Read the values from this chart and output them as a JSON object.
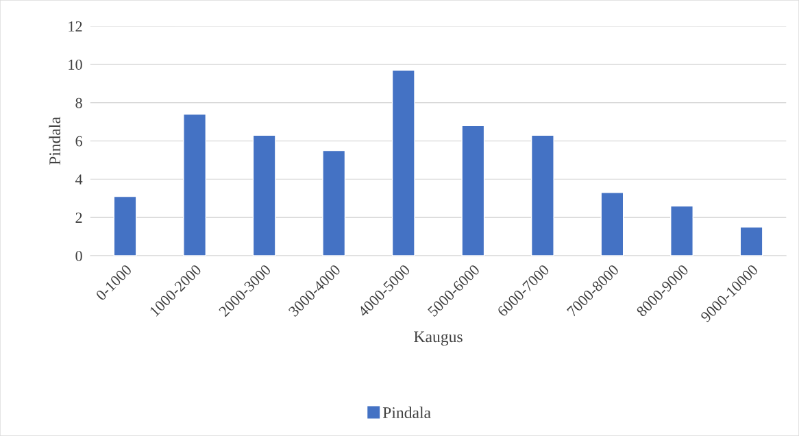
{
  "chart_data": {
    "type": "bar",
    "xlabel": "Kaugus",
    "ylabel": "Pindala",
    "categories": [
      "0-1000",
      "1000-2000",
      "2000-3000",
      "3000-4000",
      "4000-5000",
      "5000-6000",
      "6000-7000",
      "7000-8000",
      "8000-9000",
      "9000-10000"
    ],
    "series": [
      {
        "name": "Pindala",
        "color": "#4472c4",
        "values": [
          3.1,
          7.4,
          6.3,
          5.5,
          9.7,
          6.8,
          6.3,
          3.3,
          2.6,
          1.5
        ]
      }
    ],
    "ylim": [
      0,
      12
    ],
    "yticks": [
      0,
      2,
      4,
      6,
      8,
      10,
      12
    ],
    "grid": "y",
    "legend": "bottom"
  }
}
